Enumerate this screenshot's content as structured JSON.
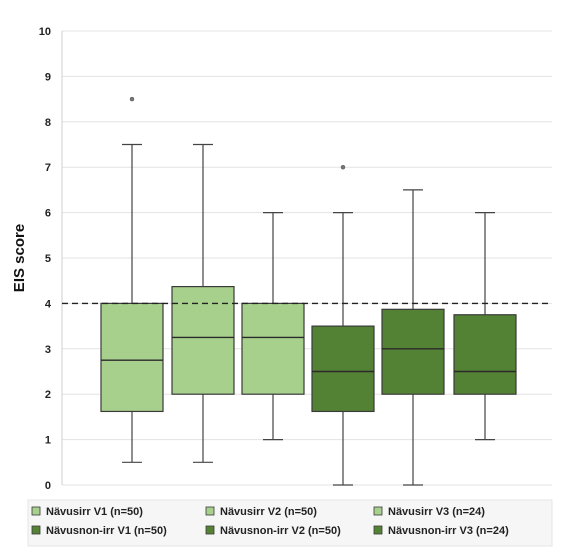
{
  "chart_data": {
    "type": "boxplot",
    "ylabel": "EIS score",
    "xlabel": "",
    "ylim": [
      0,
      10
    ],
    "yticks": [
      "0",
      "1",
      "2",
      "3",
      "4",
      "5",
      "6",
      "7",
      "8",
      "9",
      "10"
    ],
    "reference_line": 4,
    "grid": true,
    "legend_position": "bottom",
    "series": [
      {
        "name": "Nävusirr V1 (n=50)",
        "color": "#a8d08d",
        "min": 0.5,
        "q1": 1.62,
        "median": 2.75,
        "q3": 4.0,
        "max": 7.5,
        "outliers": [
          8.5
        ]
      },
      {
        "name": "Nävusirr V2 (n=50)",
        "color": "#a8d08d",
        "min": 0.5,
        "q1": 2.0,
        "median": 3.25,
        "q3": 4.37,
        "max": 7.5,
        "outliers": []
      },
      {
        "name": "Nävusirr V3 (n=24)",
        "color": "#a8d08d",
        "min": 1.0,
        "q1": 2.0,
        "median": 3.25,
        "q3": 4.0,
        "max": 6.0,
        "outliers": []
      },
      {
        "name": "Nävusnon-irr V1 (n=50)",
        "color": "#548235",
        "min": 0.0,
        "q1": 1.62,
        "median": 2.5,
        "q3": 3.5,
        "max": 6.0,
        "outliers": [
          7.0
        ]
      },
      {
        "name": "Nävusnon-irr V2 (n=50)",
        "color": "#548235",
        "min": 0.0,
        "q1": 2.0,
        "median": 3.0,
        "q3": 3.87,
        "max": 6.5,
        "outliers": []
      },
      {
        "name": "Nävusnon-irr V3 (n=24)",
        "color": "#548235",
        "min": 1.0,
        "q1": 2.0,
        "median": 2.5,
        "q3": 3.75,
        "max": 6.0,
        "outliers": []
      }
    ]
  }
}
